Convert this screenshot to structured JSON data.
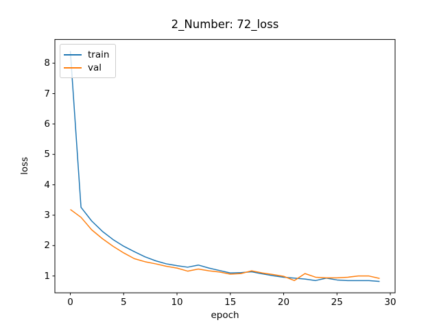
{
  "figure": {
    "background": "#ffffff",
    "spine_color": "#000000",
    "tick_color": "#000000"
  },
  "chart_data": {
    "type": "line",
    "title": "2_Number: 72_loss",
    "xlabel": "epoch",
    "ylabel": "loss",
    "grid": false,
    "legend_position": "upper left",
    "xlim": [
      -1.45,
      30.45
    ],
    "ylim": [
      0.447,
      8.78
    ],
    "x_ticks": [
      0,
      5,
      10,
      15,
      20,
      25,
      30
    ],
    "y_ticks": [
      1,
      2,
      3,
      4,
      5,
      6,
      7,
      8
    ],
    "x": [
      0,
      1,
      2,
      3,
      4,
      5,
      6,
      7,
      8,
      9,
      10,
      11,
      12,
      13,
      14,
      15,
      16,
      17,
      18,
      19,
      20,
      21,
      22,
      23,
      24,
      25,
      26,
      27,
      28,
      29
    ],
    "series": [
      {
        "name": "train",
        "color": "#1f77b4",
        "values": [
          8.4,
          3.26,
          2.81,
          2.47,
          2.2,
          1.98,
          1.8,
          1.63,
          1.5,
          1.4,
          1.34,
          1.29,
          1.36,
          1.26,
          1.18,
          1.1,
          1.11,
          1.14,
          1.07,
          1.01,
          0.96,
          0.93,
          0.9,
          0.85,
          0.93,
          0.87,
          0.85,
          0.85,
          0.85,
          0.82
        ]
      },
      {
        "name": "val",
        "color": "#ff7f0e",
        "values": [
          3.19,
          2.93,
          2.52,
          2.23,
          1.98,
          1.76,
          1.57,
          1.47,
          1.4,
          1.32,
          1.26,
          1.16,
          1.23,
          1.17,
          1.13,
          1.06,
          1.08,
          1.17,
          1.1,
          1.05,
          0.99,
          0.85,
          1.08,
          0.96,
          0.94,
          0.94,
          0.96,
          1.0,
          1.0,
          0.92
        ]
      }
    ]
  }
}
